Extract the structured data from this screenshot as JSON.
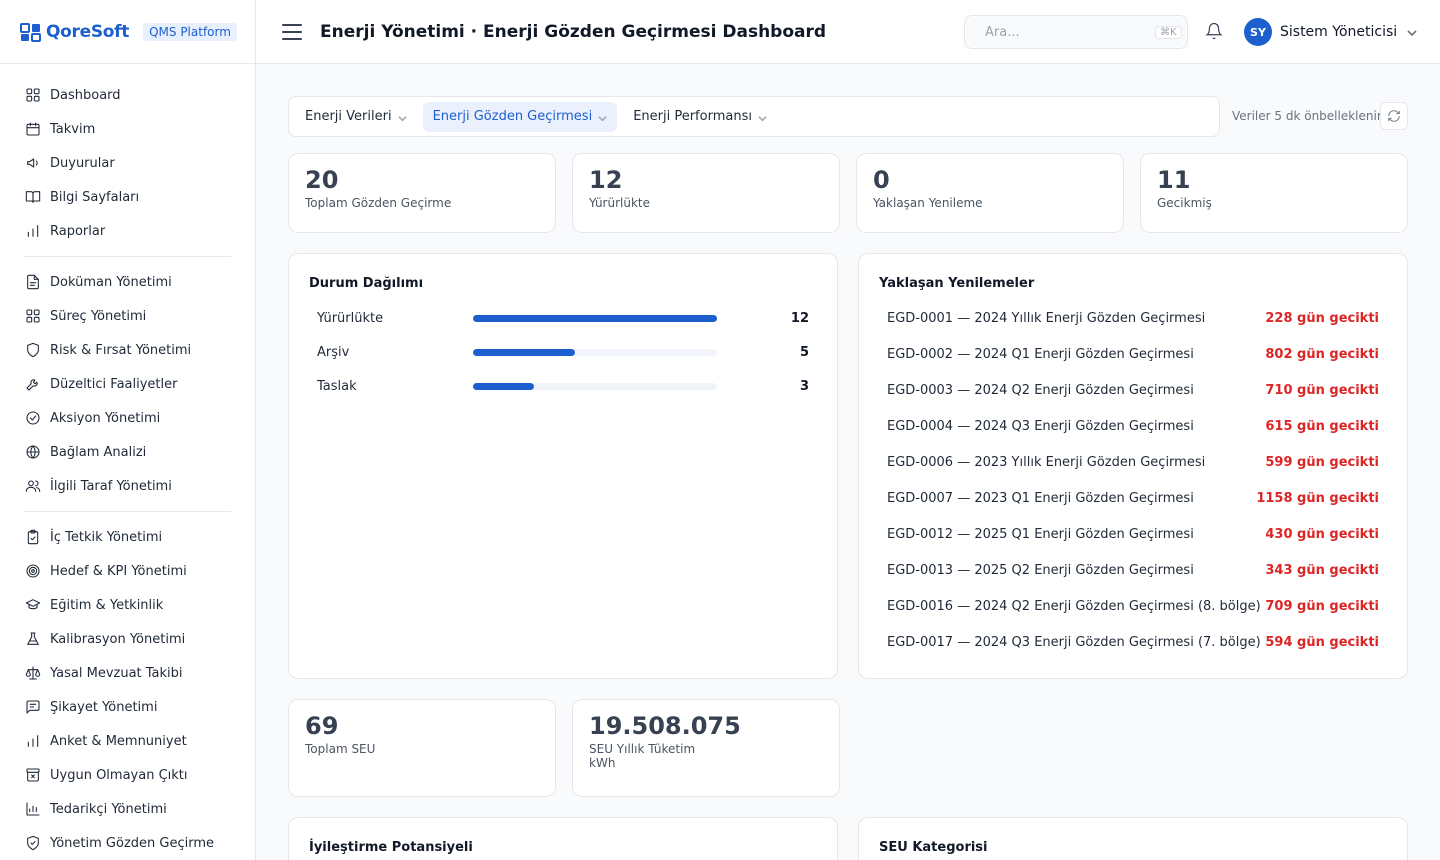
{
  "brand": {
    "name": "QoreSoft",
    "badge": "QMS Platform"
  },
  "header": {
    "title": "Enerji Yönetimi · Enerji Gözden Geçirmesi Dashboard",
    "search_placeholder": "Ara...",
    "search_shortcut": "⌘K",
    "user_initials": "SY",
    "user_name": "Sistem Yöneticisi"
  },
  "sidebar": {
    "groups": [
      [
        {
          "label": "Dashboard",
          "icon": "grid-icon"
        },
        {
          "label": "Takvim",
          "icon": "calendar-icon"
        },
        {
          "label": "Duyurular",
          "icon": "megaphone-icon"
        },
        {
          "label": "Bilgi Sayfaları",
          "icon": "book-icon"
        },
        {
          "label": "Raporlar",
          "icon": "bar-chart-icon"
        }
      ],
      [
        {
          "label": "Doküman Yönetimi",
          "icon": "document-icon"
        },
        {
          "label": "Süreç Yönetimi",
          "icon": "grid-icon"
        },
        {
          "label": "Risk & Fırsat Yönetimi",
          "icon": "shield-icon"
        },
        {
          "label": "Düzeltici Faaliyetler",
          "icon": "wrench-icon"
        },
        {
          "label": "Aksiyon Yönetimi",
          "icon": "check-circle-icon"
        },
        {
          "label": "Bağlam Analizi",
          "icon": "globe-icon"
        },
        {
          "label": "İlgili Taraf Yönetimi",
          "icon": "users-icon"
        }
      ],
      [
        {
          "label": "İç Tetkik Yönetimi",
          "icon": "clipboard-check-icon"
        },
        {
          "label": "Hedef & KPI Yönetimi",
          "icon": "target-icon"
        },
        {
          "label": "Eğitim & Yetkinlik",
          "icon": "graduation-cap-icon"
        },
        {
          "label": "Kalibrasyon Yönetimi",
          "icon": "flask-icon"
        },
        {
          "label": "Yasal Mevzuat Takibi",
          "icon": "scale-icon"
        },
        {
          "label": "Şikayet Yönetimi",
          "icon": "message-icon"
        },
        {
          "label": "Anket & Memnuniyet",
          "icon": "bar-chart-icon"
        },
        {
          "label": "Uygun Olmayan Çıktı",
          "icon": "archive-x-icon"
        },
        {
          "label": "Tedarikçi Yönetimi",
          "icon": "chart-box-icon"
        },
        {
          "label": "Yönetim Gözden Geçirme",
          "icon": "shield-check-icon"
        }
      ]
    ]
  },
  "tabs": [
    {
      "label": "Enerji Verileri",
      "active": false
    },
    {
      "label": "Enerji Gözden Geçirmesi",
      "active": true
    },
    {
      "label": "Enerji Performansı",
      "active": false
    }
  ],
  "cache_text": "Veriler 5 dk önbelleklenir",
  "stats_top": [
    {
      "value": "20",
      "label": "Toplam Gözden Geçirme"
    },
    {
      "value": "12",
      "label": "Yürürlükte"
    },
    {
      "value": "0",
      "label": "Yaklaşan Yenileme"
    },
    {
      "value": "11",
      "label": "Gecikmiş"
    }
  ],
  "status_distribution": {
    "title": "Durum Dağılımı",
    "max": 12,
    "rows": [
      {
        "label": "Yürürlükte",
        "value": 12
      },
      {
        "label": "Arşiv",
        "value": 5
      },
      {
        "label": "Taslak",
        "value": 3
      }
    ]
  },
  "upcoming_renewals": {
    "title": "Yaklaşan Yenilemeler",
    "rows": [
      {
        "name": "EGD-0001 — 2024 Yıllık Enerji Gözden Geçirmesi",
        "status": "228 gün gecikti"
      },
      {
        "name": "EGD-0002 — 2024 Q1 Enerji Gözden Geçirmesi",
        "status": "802 gün gecikti"
      },
      {
        "name": "EGD-0003 — 2024 Q2 Enerji Gözden Geçirmesi",
        "status": "710 gün gecikti"
      },
      {
        "name": "EGD-0004 — 2024 Q3 Enerji Gözden Geçirmesi",
        "status": "615 gün gecikti"
      },
      {
        "name": "EGD-0006 — 2023 Yıllık Enerji Gözden Geçirmesi",
        "status": "599 gün gecikti"
      },
      {
        "name": "EGD-0007 — 2023 Q1 Enerji Gözden Geçirmesi",
        "status": "1158 gün gecikti"
      },
      {
        "name": "EGD-0012 — 2025 Q1 Enerji Gözden Geçirmesi",
        "status": "430 gün gecikti"
      },
      {
        "name": "EGD-0013 — 2025 Q2 Enerji Gözden Geçirmesi",
        "status": "343 gün gecikti"
      },
      {
        "name": "EGD-0016 — 2024 Q2 Enerji Gözden Geçirmesi (8. bölge)",
        "status": "709 gün gecikti"
      },
      {
        "name": "EGD-0017 — 2024 Q3 Enerji Gözden Geçirmesi (7. bölge)",
        "status": "594 gün gecikti"
      }
    ]
  },
  "stats_bottom": [
    {
      "value": "69",
      "label": "Toplam SEU",
      "sub": ""
    },
    {
      "value": "19.508.075",
      "label": "SEU Yıllık Tüketim",
      "sub": "kWh"
    }
  ],
  "bottom_cards": {
    "improvement_title": "İyileştirme Potansiyeli",
    "seu_category_title": "SEU Kategorisi"
  },
  "colors": {
    "accent": "#1e5fd0",
    "danger": "#dc2626"
  }
}
